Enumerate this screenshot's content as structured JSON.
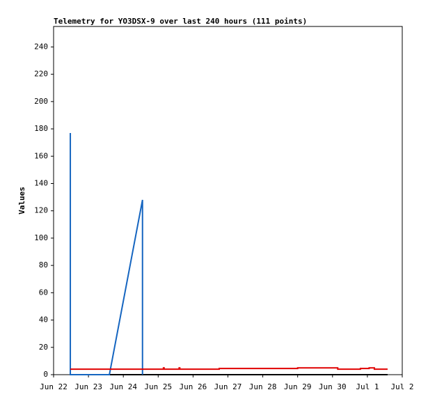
{
  "chart_data": {
    "type": "line",
    "title": "Telemetry for YO3DSX-9 over last 240 hours (111 points)",
    "y_label": "Values",
    "xlim": [
      0,
      10
    ],
    "xticks": [
      {
        "value": 0,
        "label": "Jun 22"
      },
      {
        "value": 1,
        "label": "Jun 23"
      },
      {
        "value": 2,
        "label": "Jun 24"
      },
      {
        "value": 3,
        "label": "Jun 25"
      },
      {
        "value": 4,
        "label": "Jun 26"
      },
      {
        "value": 5,
        "label": "Jun 27"
      },
      {
        "value": 6,
        "label": "Jun 28"
      },
      {
        "value": 7,
        "label": "Jun 29"
      },
      {
        "value": 8,
        "label": "Jun 30"
      },
      {
        "value": 9,
        "label": "Jul 1"
      },
      {
        "value": 10,
        "label": "Jul 2"
      }
    ],
    "ylim": [
      0,
      255
    ],
    "yticks": [
      0,
      20,
      40,
      60,
      80,
      100,
      120,
      140,
      160,
      180,
      200,
      220,
      240
    ],
    "series": [
      {
        "color": "#000000",
        "x": [
          0.48,
          9.58
        ],
        "values": [
          0,
          0
        ]
      },
      {
        "color": "#1565c0",
        "x": [
          0.48,
          0.48,
          0.48,
          1.6,
          2.55,
          2.55
        ],
        "values": [
          0,
          177,
          0,
          0,
          128,
          0
        ]
      },
      {
        "color": "#e00000",
        "x": [
          0.48,
          3.15,
          3.15,
          3.17,
          3.17,
          3.6,
          3.6,
          3.62,
          3.62,
          4.75,
          4.75,
          7.0,
          7.0,
          8.15,
          8.15,
          8.8,
          8.8,
          9.05,
          9.05,
          9.2,
          9.2,
          9.58
        ],
        "values": [
          4,
          4,
          5,
          5,
          4,
          4,
          5,
          5,
          4,
          4,
          4.5,
          4.5,
          5,
          5,
          4,
          4,
          4.5,
          4.5,
          5,
          5,
          4,
          4
        ]
      }
    ]
  }
}
